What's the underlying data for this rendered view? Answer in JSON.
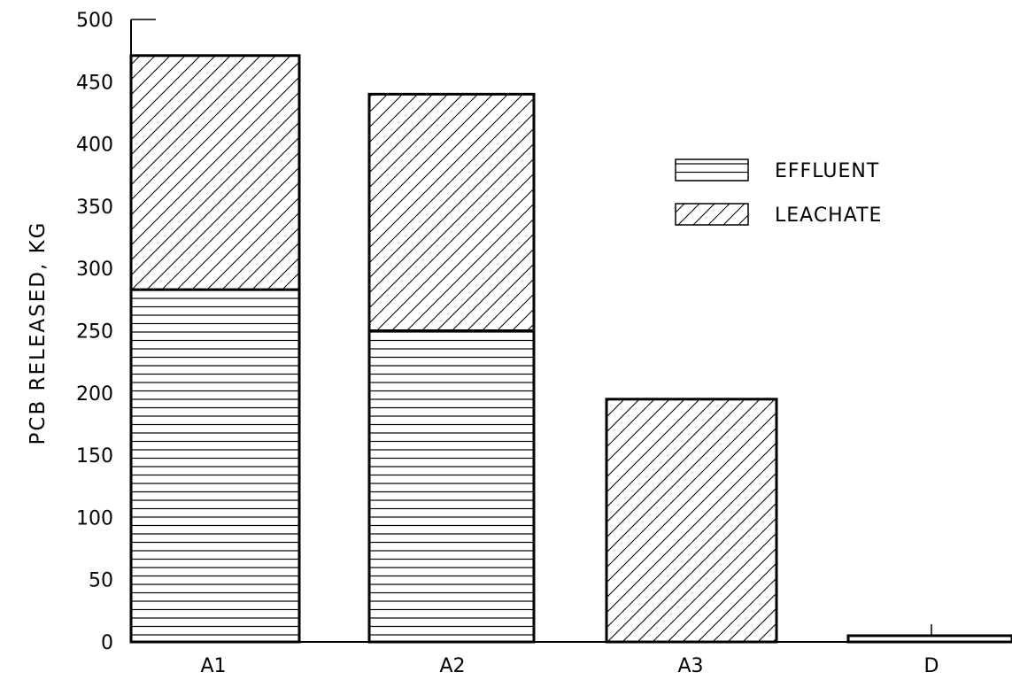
{
  "chart_data": {
    "type": "bar",
    "stacked": true,
    "categories": [
      "A1",
      "A2",
      "A3",
      "D"
    ],
    "series": [
      {
        "name": "EFFLUENT",
        "pattern": "horizontal-lines",
        "values": [
          283,
          250,
          0,
          5
        ]
      },
      {
        "name": "LEACHATE",
        "pattern": "diagonal-hatch",
        "values": [
          188,
          190,
          195,
          0
        ]
      }
    ],
    "ylabel": "PCB RELEASED, KG",
    "xlabel": "",
    "ylim": [
      0,
      500
    ],
    "yticks": [
      0,
      50,
      100,
      150,
      200,
      250,
      300,
      350,
      400,
      450,
      500
    ],
    "grid": false,
    "legend_position": "top-right",
    "colors": {
      "ink": "#000000",
      "background": "#ffffff"
    }
  }
}
